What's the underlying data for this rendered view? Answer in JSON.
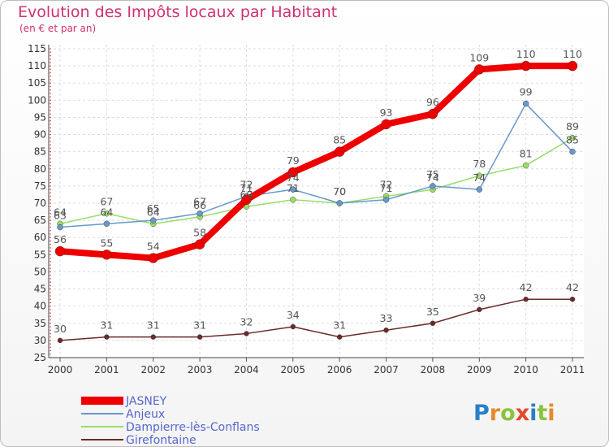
{
  "chart_data": {
    "type": "line",
    "title": "Evolution des Impôts locaux par Habitant",
    "subtitle": "(en € et par an)",
    "xlabel": "",
    "ylabel": "",
    "ylim": [
      25,
      115
    ],
    "yticks": [
      25,
      30,
      35,
      40,
      45,
      50,
      55,
      60,
      65,
      70,
      75,
      80,
      85,
      90,
      95,
      100,
      105,
      110,
      115
    ],
    "x": [
      "2000",
      "2001",
      "2002",
      "2003",
      "2004",
      "2005",
      "2006",
      "2007",
      "2008",
      "2009",
      "2010",
      "2011"
    ],
    "grid": true,
    "legend_position": "bottom-left",
    "series": [
      {
        "name": "Girefontaine",
        "color": "#6b2a2a",
        "values": [
          30,
          31,
          31,
          31,
          32,
          34,
          31,
          33,
          35,
          39,
          42,
          42
        ]
      },
      {
        "name": "Dampierre-lès-Conflans",
        "color": "#99dd66",
        "values": [
          64,
          67,
          64,
          66,
          69,
          71,
          70,
          72,
          74,
          78,
          81,
          89
        ]
      },
      {
        "name": "Anjeux",
        "color": "#6699cc",
        "values": [
          63,
          64,
          65,
          67,
          72,
          74,
          70,
          71,
          75,
          74,
          99,
          85
        ]
      },
      {
        "name": "JASNEY",
        "color": "#ee0000",
        "values": [
          56,
          55,
          54,
          58,
          71,
          79,
          85,
          93,
          96,
          109,
          110,
          110
        ]
      }
    ],
    "legend_order": [
      "JASNEY",
      "Anjeux",
      "Dampierre-lès-Conflans",
      "Girefontaine"
    ]
  },
  "logo": {
    "letters": [
      "P",
      "r",
      "o",
      "x",
      "i",
      "t",
      "i"
    ],
    "colors": [
      "#2a7fc9",
      "#e8892a",
      "#8ac43f",
      "#e8452a",
      "#2a7fc9",
      "#8ac43f",
      "#e8892a"
    ]
  }
}
